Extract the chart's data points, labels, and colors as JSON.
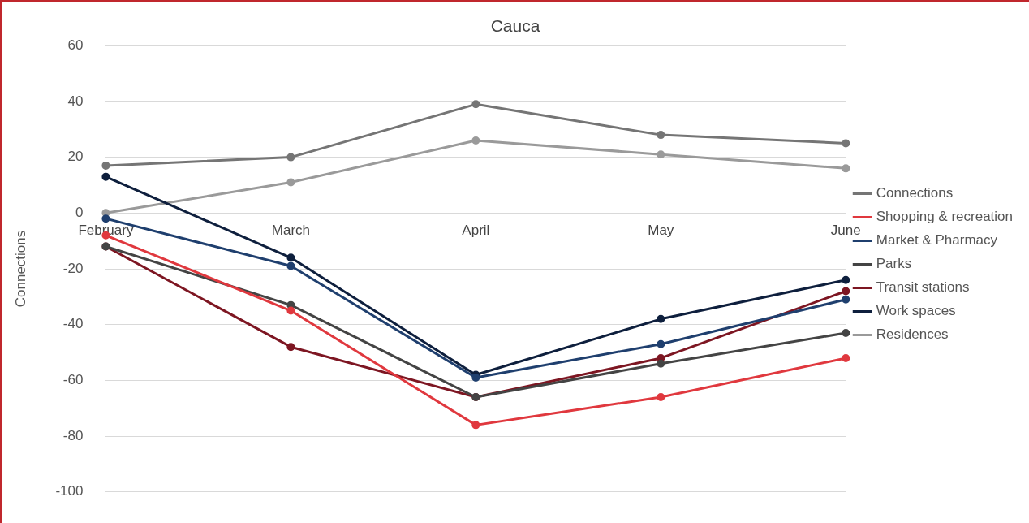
{
  "chart_data": {
    "type": "line",
    "title": "Cauca",
    "ylabel": "Connections",
    "categories": [
      "February",
      "March",
      "April",
      "May",
      "June"
    ],
    "series": [
      {
        "name": "Connections",
        "color": "#757575",
        "values": [
          17,
          20,
          39,
          28,
          25
        ]
      },
      {
        "name": "Shopping & recreation",
        "color": "#e0383e",
        "values": [
          -8,
          -35,
          -76,
          -66,
          -52
        ]
      },
      {
        "name": "Market & Pharmacy",
        "color": "#1f3f6e",
        "values": [
          -2,
          -19,
          -59,
          -47,
          -31
        ]
      },
      {
        "name": "Parks",
        "color": "#444444",
        "values": [
          -12,
          -33,
          -66,
          -54,
          -43
        ]
      },
      {
        "name": "Transit stations",
        "color": "#7d1622",
        "values": [
          -12,
          -48,
          -66,
          -52,
          -28
        ]
      },
      {
        "name": "Work spaces",
        "color": "#0e1f3d",
        "values": [
          13,
          -16,
          -58,
          -38,
          -24
        ]
      },
      {
        "name": "Residences",
        "color": "#9a9a9a",
        "values": [
          0,
          11,
          26,
          21,
          16
        ]
      }
    ],
    "ylim": [
      -100,
      60
    ],
    "yticks": [
      -100,
      -80,
      -60,
      -40,
      -20,
      0,
      20,
      40,
      60
    ],
    "grid": "y",
    "legend": "right",
    "marker": "circle",
    "line_style": "solid"
  }
}
